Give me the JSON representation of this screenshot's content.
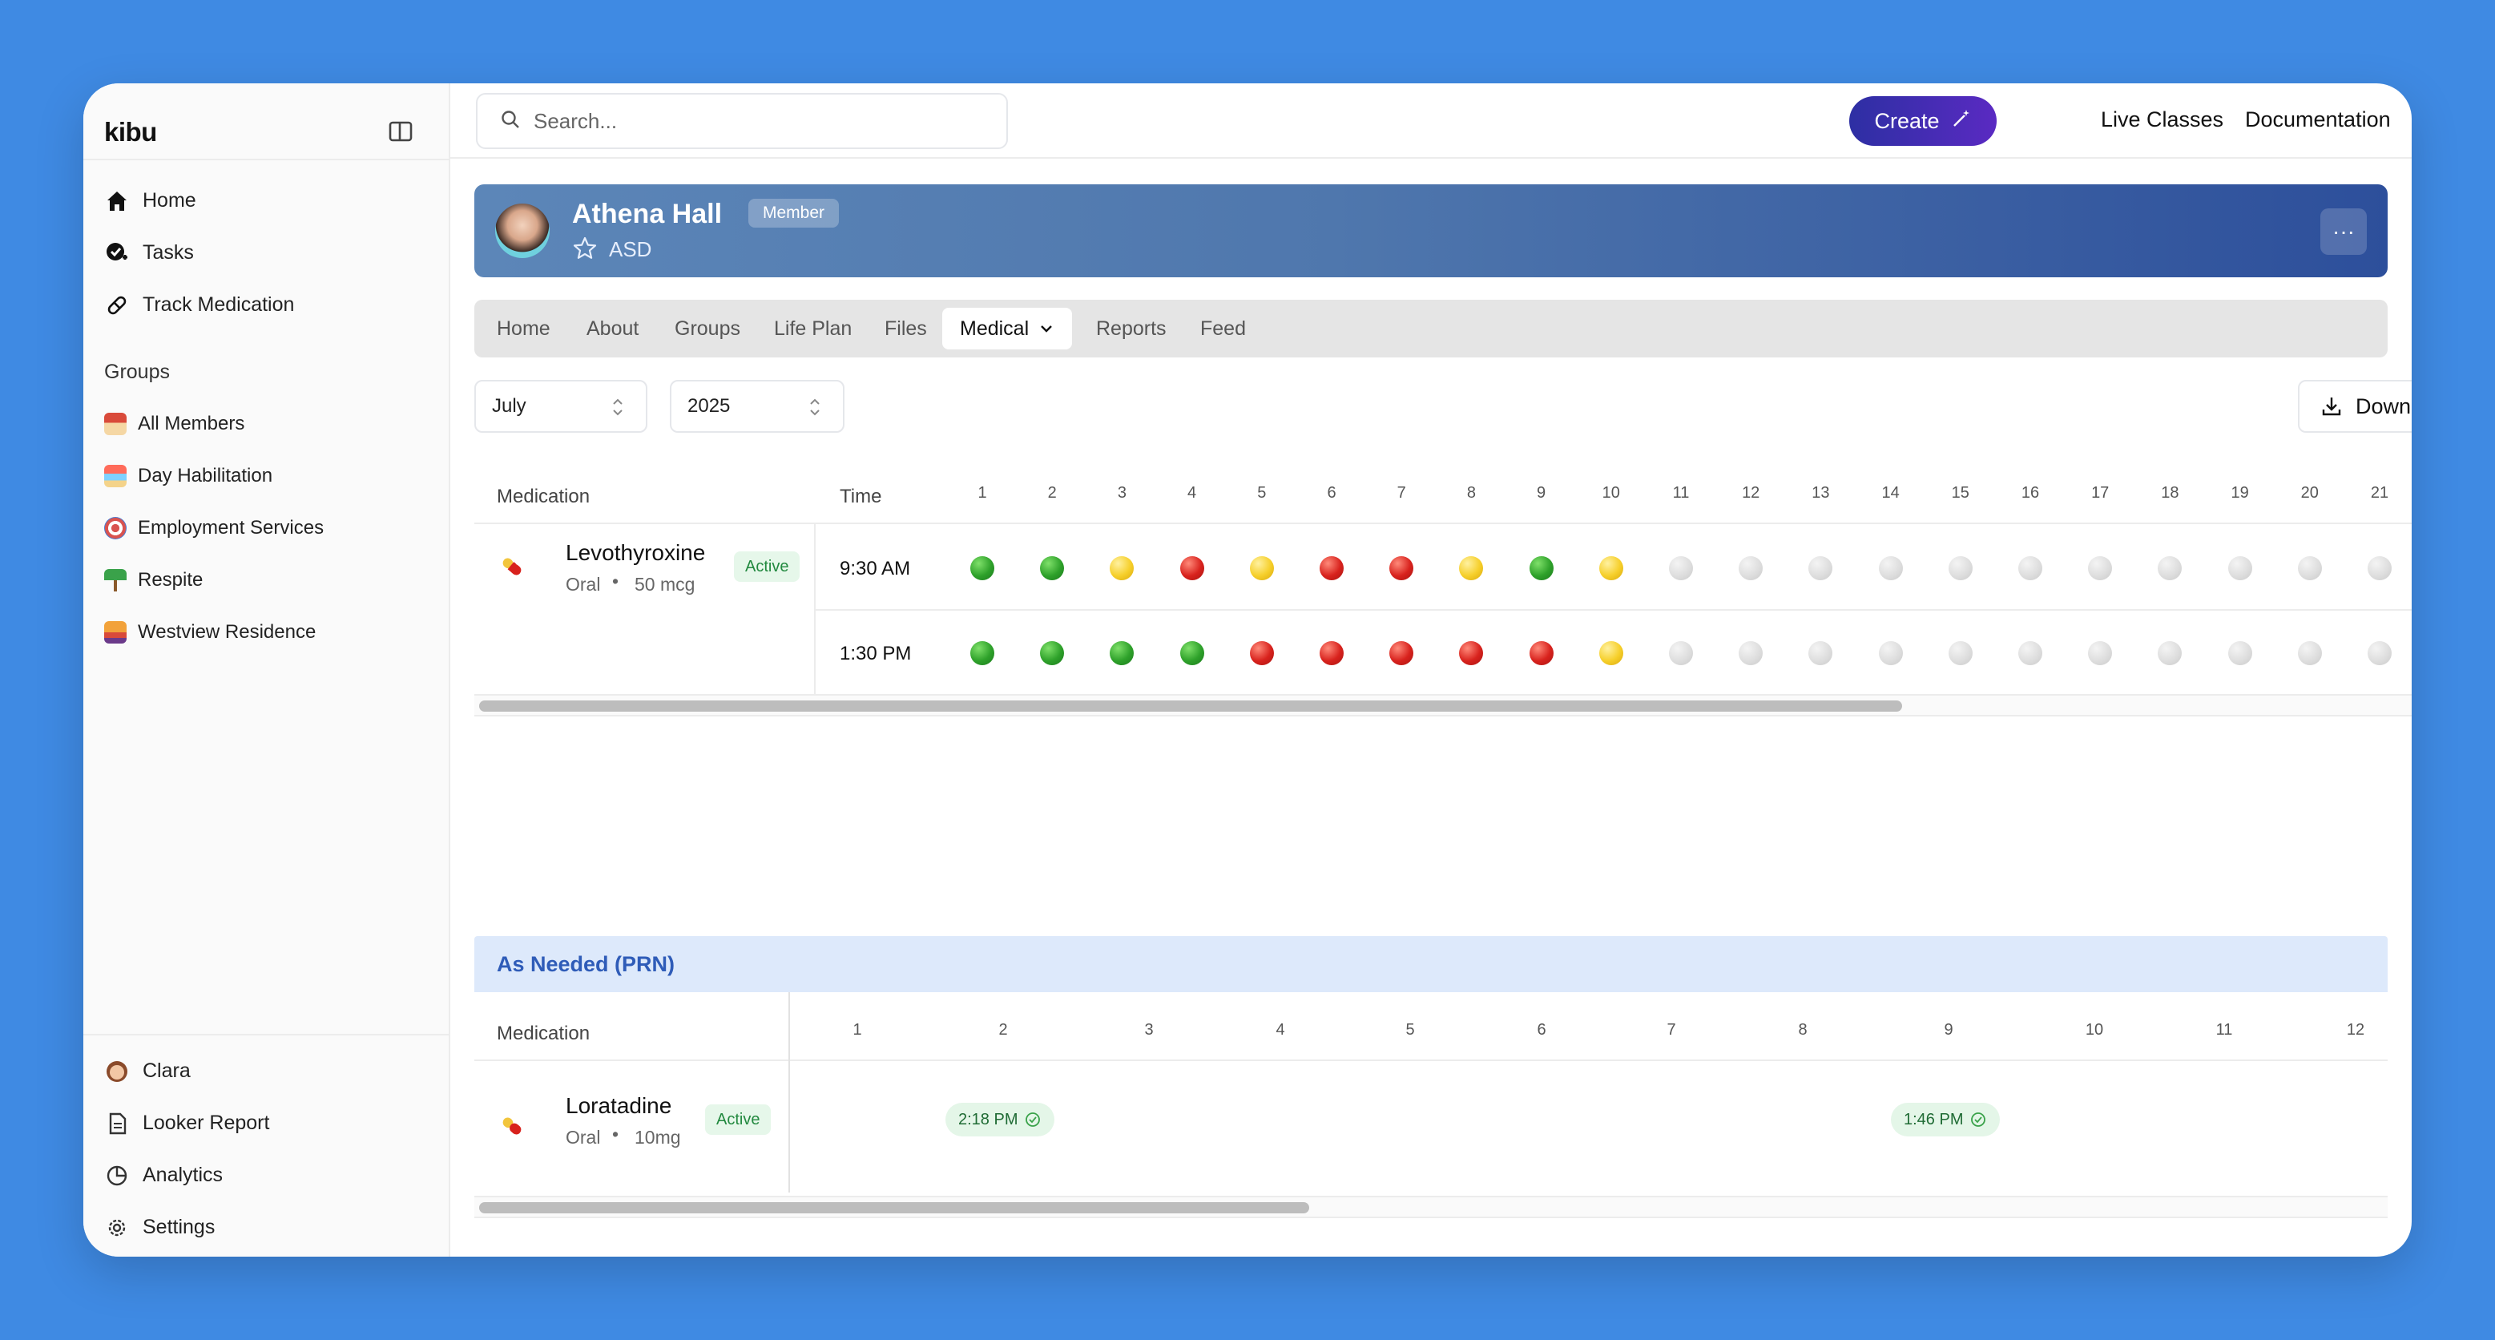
{
  "app": {
    "brand": "kibu"
  },
  "sidebar": {
    "nav": [
      {
        "label": "Home",
        "icon": "home-icon"
      },
      {
        "label": "Tasks",
        "icon": "tasks-icon"
      },
      {
        "label": "Track Medication",
        "icon": "pill-icon"
      }
    ],
    "groups_title": "Groups",
    "groups": [
      {
        "label": "All Members",
        "color": "#c97a3a"
      },
      {
        "label": "Day Habilitation",
        "color": "#f0a24a"
      },
      {
        "label": "Employment Services",
        "color": "#d9534f"
      },
      {
        "label": "Respite",
        "color": "#3aa24a"
      },
      {
        "label": "Westview Residence",
        "color": "#e5733a"
      }
    ],
    "bottom": [
      {
        "label": "Clara",
        "icon": "clara-avatar-icon"
      },
      {
        "label": "Looker Report",
        "icon": "document-icon"
      },
      {
        "label": "Analytics",
        "icon": "pie-chart-icon"
      },
      {
        "label": "Settings",
        "icon": "gear-icon"
      }
    ]
  },
  "topbar": {
    "search_placeholder": "Search...",
    "create_label": "Create",
    "live_classes": "Live Classes",
    "documentation": "Documentation"
  },
  "profile": {
    "name": "Athena Hall",
    "badge": "Member",
    "diagnosis": "ASD",
    "more": "···"
  },
  "tabs": [
    {
      "label": "Home"
    },
    {
      "label": "About"
    },
    {
      "label": "Groups"
    },
    {
      "label": "Life Plan"
    },
    {
      "label": "Files"
    },
    {
      "label": "Medical",
      "active": true
    },
    {
      "label": "Reports"
    },
    {
      "label": "Feed"
    }
  ],
  "filters": {
    "month": "July",
    "year": "2025",
    "download": "Download"
  },
  "schedule": {
    "headers": {
      "medication": "Medication",
      "time": "Time"
    },
    "days": [
      "1",
      "2",
      "3",
      "4",
      "5",
      "6",
      "7",
      "8",
      "9",
      "10",
      "11",
      "12",
      "13",
      "14",
      "15",
      "16",
      "17",
      "18",
      "19",
      "20",
      "21"
    ],
    "medication": {
      "name": "Levothyroxine",
      "route": "Oral",
      "dose": "50 mcg",
      "status": "Active"
    },
    "rows": [
      {
        "time": "9:30 AM",
        "statuses": [
          "green",
          "green",
          "yellow",
          "red",
          "yellow",
          "red",
          "red",
          "yellow",
          "green",
          "yellow",
          "grey",
          "grey",
          "grey",
          "grey",
          "grey",
          "grey",
          "grey",
          "grey",
          "grey",
          "grey",
          "grey"
        ]
      },
      {
        "time": "1:30 PM",
        "statuses": [
          "green",
          "green",
          "green",
          "green",
          "red",
          "red",
          "red",
          "red",
          "red",
          "yellow",
          "grey",
          "grey",
          "grey",
          "grey",
          "grey",
          "grey",
          "grey",
          "grey",
          "grey",
          "grey",
          "grey"
        ]
      }
    ],
    "status_colors": {
      "green": "#2ea12a",
      "yellow": "#f6cf2a",
      "red": "#d8221d",
      "grey": "#dcdcdc"
    }
  },
  "prn": {
    "title": "As Needed (PRN)",
    "header_medication": "Medication",
    "days": [
      "1",
      "2",
      "3",
      "4",
      "5",
      "6",
      "7",
      "8",
      "9",
      "10",
      "11",
      "12"
    ],
    "medication": {
      "name": "Loratadine",
      "route": "Oral",
      "dose": "10mg",
      "status": "Active"
    },
    "doses": [
      {
        "day": "2",
        "time": "2:18 PM"
      },
      {
        "day": "9",
        "time": "1:46 PM"
      }
    ]
  },
  "colors": {
    "accent": "#2d6cf0",
    "create_gradient_start": "#2d2fa3",
    "create_gradient_end": "#5a2ac2",
    "prn_bg": "#dde9fb"
  }
}
